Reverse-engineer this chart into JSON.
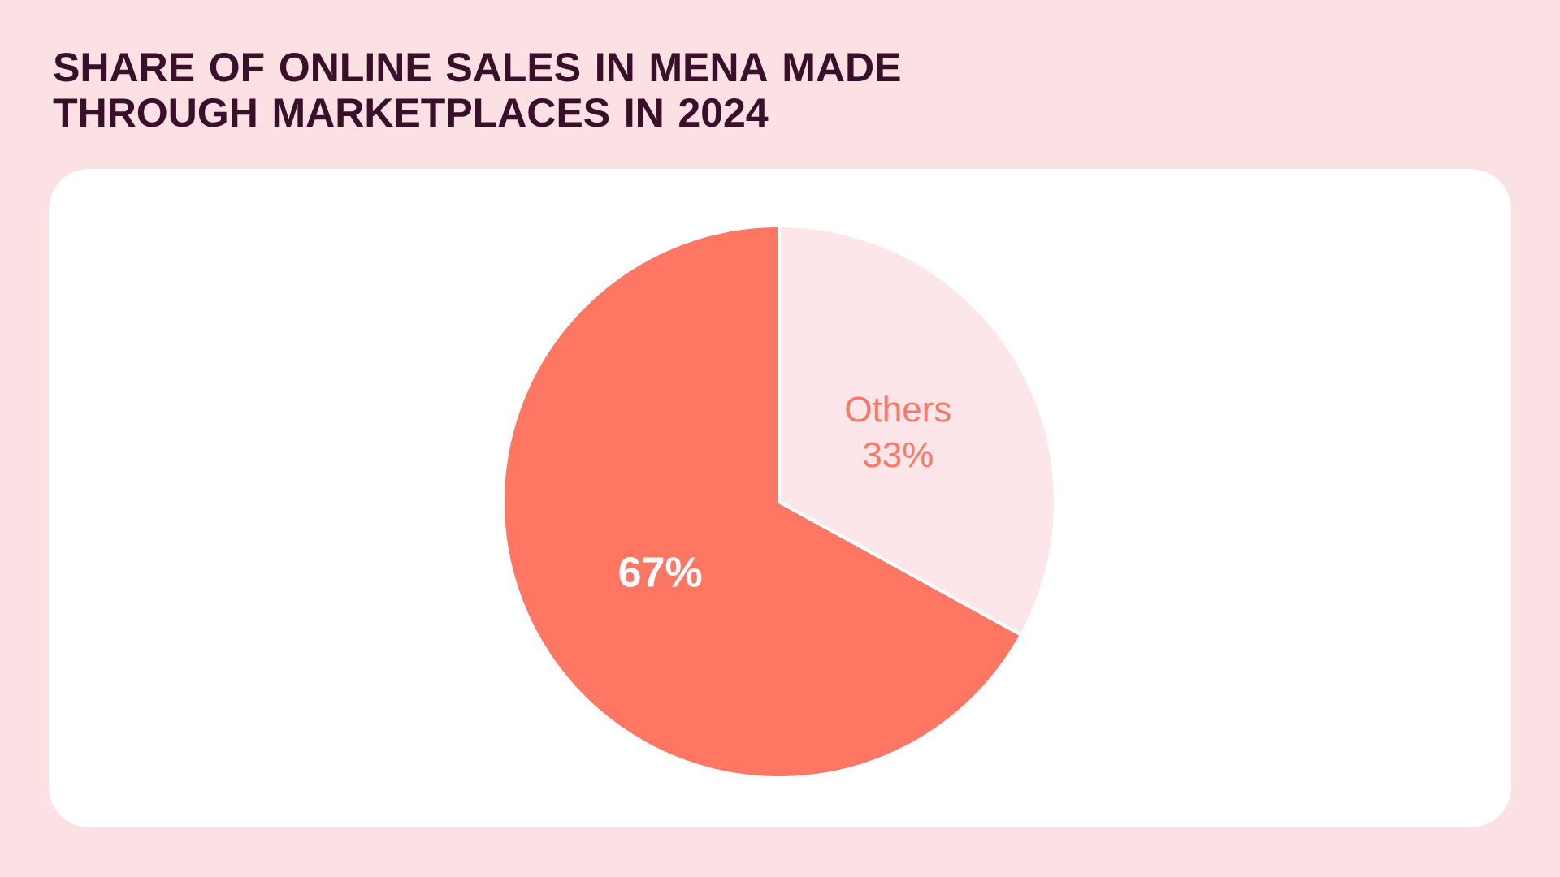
{
  "chart_data": {
    "type": "pie",
    "title": "SHARE OF ONLINE SALES IN MENA MADE THROUGH MARKETPLACES IN 2024",
    "categories": [
      null,
      "Others"
    ],
    "values": [
      67,
      33
    ],
    "colors": [
      "#ff7663",
      "#fde6ea"
    ],
    "value_labels": [
      "67%",
      "33%"
    ]
  }
}
